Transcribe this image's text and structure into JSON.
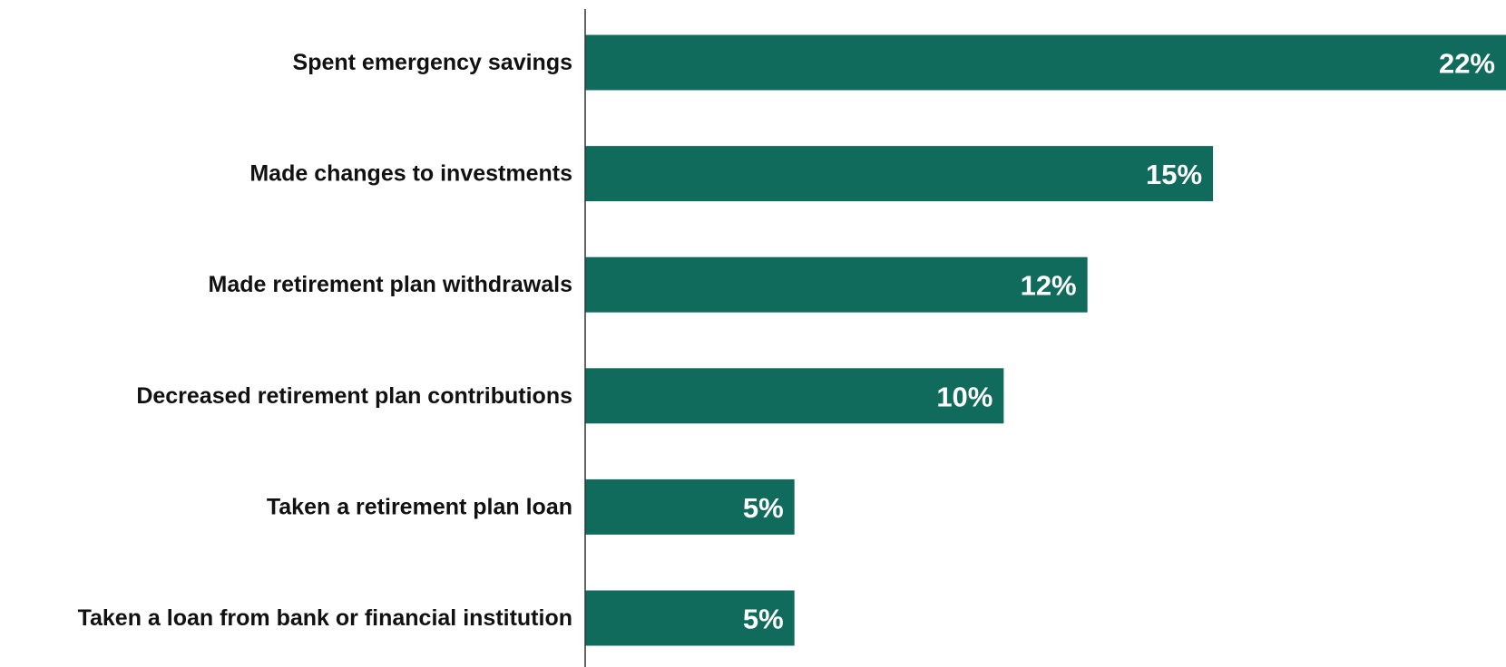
{
  "chart_data": {
    "type": "bar",
    "orientation": "horizontal",
    "categories": [
      "Spent emergency savings",
      "Made changes to investments",
      "Made retirement plan withdrawals",
      "Decreased retirement plan contributions",
      "Taken a retirement plan loan",
      "Taken a loan from bank or financial institution"
    ],
    "values": [
      22,
      15,
      12,
      10,
      5,
      5
    ],
    "value_labels": [
      "22%",
      "15%",
      "12%",
      "10%",
      "5%",
      "5%"
    ],
    "title": "",
    "xlabel": "",
    "ylabel": "",
    "xlim": [
      0,
      22
    ],
    "grid": false,
    "legend": "none",
    "colors": {
      "bar": "#106b5c",
      "axis": "#333333",
      "category_text": "#111111",
      "value_text": "#ffffff"
    }
  }
}
